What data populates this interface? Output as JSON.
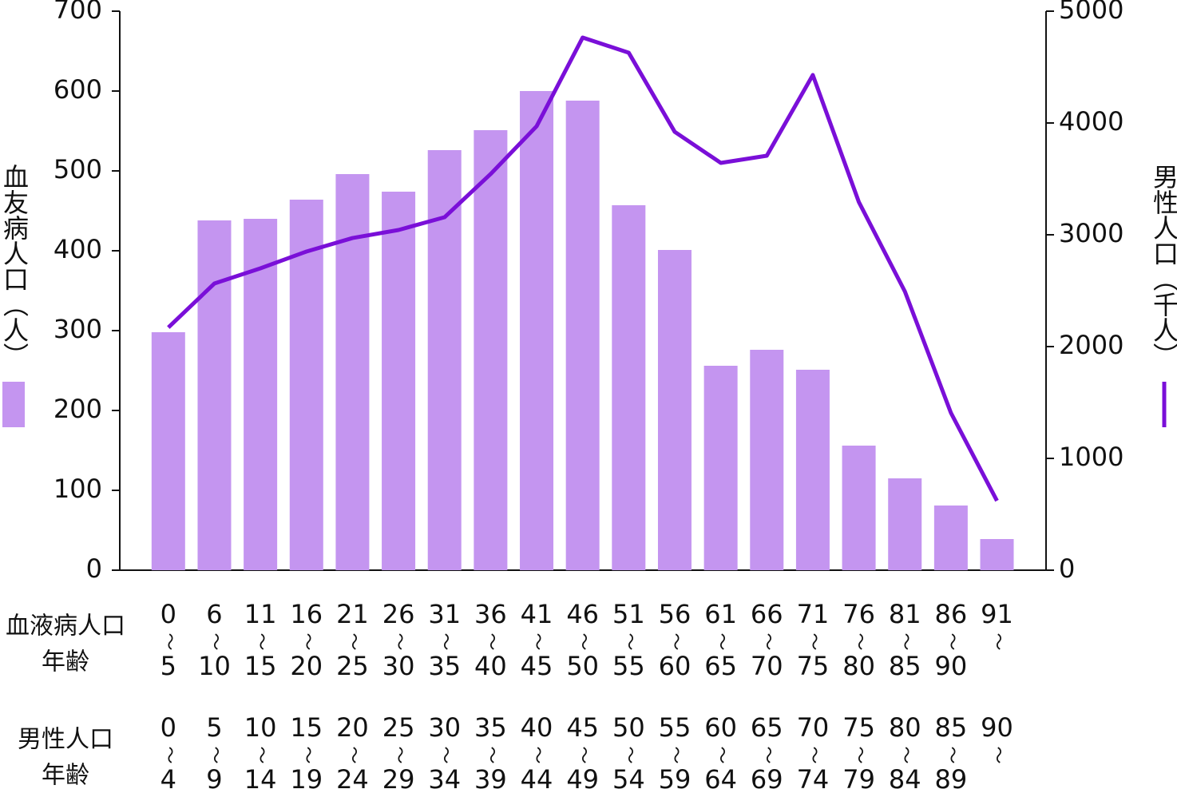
{
  "chart_data": {
    "type": "combo",
    "ylabel": "血友病人口（人）",
    "y2label": "男性人口（千人）",
    "ylim": [
      0,
      700
    ],
    "yticks": [
      0,
      100,
      200,
      300,
      400,
      500,
      600,
      700
    ],
    "y2lim": [
      0,
      5000
    ],
    "y2ticks": [
      0,
      1000,
      2000,
      3000,
      4000,
      5000
    ],
    "category_rows": [
      {
        "label": [
          "血液病人口",
          "年齢"
        ],
        "categories": [
          [
            "0",
            "〜",
            "5"
          ],
          [
            "6",
            "〜",
            "10"
          ],
          [
            "11",
            "〜",
            "15"
          ],
          [
            "16",
            "〜",
            "20"
          ],
          [
            "21",
            "〜",
            "25"
          ],
          [
            "26",
            "〜",
            "30"
          ],
          [
            "31",
            "〜",
            "35"
          ],
          [
            "36",
            "〜",
            "40"
          ],
          [
            "41",
            "〜",
            "45"
          ],
          [
            "46",
            "〜",
            "50"
          ],
          [
            "51",
            "〜",
            "55"
          ],
          [
            "56",
            "〜",
            "60"
          ],
          [
            "61",
            "〜",
            "65"
          ],
          [
            "66",
            "〜",
            "70"
          ],
          [
            "71",
            "〜",
            "75"
          ],
          [
            "76",
            "〜",
            "80"
          ],
          [
            "81",
            "〜",
            "85"
          ],
          [
            "86",
            "〜",
            "90"
          ],
          [
            "91",
            "〜"
          ]
        ]
      },
      {
        "label": [
          "男性人口",
          "年齢"
        ],
        "categories": [
          [
            "0",
            "〜",
            "4"
          ],
          [
            "5",
            "〜",
            "9"
          ],
          [
            "10",
            "〜",
            "14"
          ],
          [
            "15",
            "〜",
            "19"
          ],
          [
            "20",
            "〜",
            "24"
          ],
          [
            "25",
            "〜",
            "29"
          ],
          [
            "30",
            "〜",
            "34"
          ],
          [
            "35",
            "〜",
            "39"
          ],
          [
            "40",
            "〜",
            "44"
          ],
          [
            "45",
            "〜",
            "49"
          ],
          [
            "50",
            "〜",
            "54"
          ],
          [
            "55",
            "〜",
            "59"
          ],
          [
            "60",
            "〜",
            "64"
          ],
          [
            "65",
            "〜",
            "69"
          ],
          [
            "70",
            "〜",
            "74"
          ],
          [
            "75",
            "〜",
            "79"
          ],
          [
            "80",
            "〜",
            "84"
          ],
          [
            "85",
            "〜",
            "89"
          ],
          [
            "90",
            "〜"
          ]
        ]
      }
    ],
    "series": [
      {
        "type": "bar",
        "color": "#c495f0",
        "values": [
          298,
          438,
          440,
          464,
          496,
          474,
          526,
          551,
          600,
          588,
          457,
          401,
          256,
          276,
          251,
          156,
          115,
          81,
          39
        ]
      },
      {
        "type": "line",
        "axis": "y2",
        "color": "#7a0fd8",
        "values": [
          2171,
          2564,
          2700,
          2850,
          2971,
          3043,
          3157,
          3543,
          3971,
          4764,
          4629,
          3921,
          3643,
          3707,
          4429,
          3293,
          2493,
          1407,
          621
        ]
      }
    ]
  }
}
